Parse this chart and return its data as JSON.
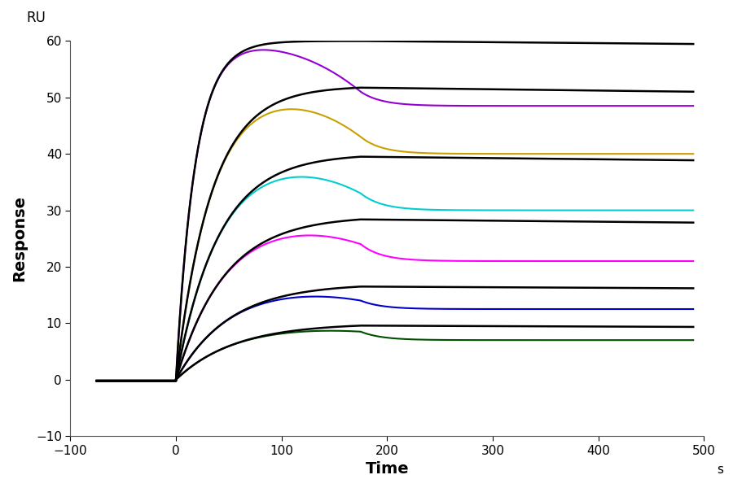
{
  "xlabel": "Time",
  "xlabel_unit": "s",
  "ylabel": "Response",
  "ylabel_unit": "RU",
  "xlim": [
    -100,
    500
  ],
  "ylim": [
    -10,
    60
  ],
  "xticks": [
    -100,
    0,
    100,
    200,
    300,
    400,
    500
  ],
  "yticks": [
    -10,
    0,
    10,
    20,
    30,
    40,
    50,
    60
  ],
  "assoc_start": 0,
  "assoc_end": 175,
  "dissoc_end": 490,
  "baseline_start": -75,
  "curves": [
    {
      "color": "#9400D3",
      "Rmax": 60,
      "ka": 0.055,
      "kd": 0.00015,
      "peak": 51.0,
      "dissoc_plateau": 48.5
    },
    {
      "color": "#C8A000",
      "Rmax": 52,
      "ka": 0.03,
      "kd": 0.0002,
      "peak": 43.0,
      "dissoc_plateau": 40.0
    },
    {
      "color": "#00CED1",
      "Rmax": 40,
      "ka": 0.025,
      "kd": 0.00022,
      "peak": 33.0,
      "dissoc_plateau": 30.0
    },
    {
      "color": "#FF00FF",
      "Rmax": 29,
      "ka": 0.022,
      "kd": 0.00025,
      "peak": 24.0,
      "dissoc_plateau": 21.0
    },
    {
      "color": "#0000CD",
      "Rmax": 17,
      "ka": 0.02,
      "kd": 0.00025,
      "peak": 14.0,
      "dissoc_plateau": 12.5
    },
    {
      "color": "#005000",
      "Rmax": 10,
      "ka": 0.018,
      "kd": 0.0003,
      "peak": 8.5,
      "dissoc_plateau": 7.0
    }
  ],
  "fit_color": "#000000",
  "background_color": "#ffffff",
  "linewidth": 1.5,
  "fit_linewidth": 1.8
}
